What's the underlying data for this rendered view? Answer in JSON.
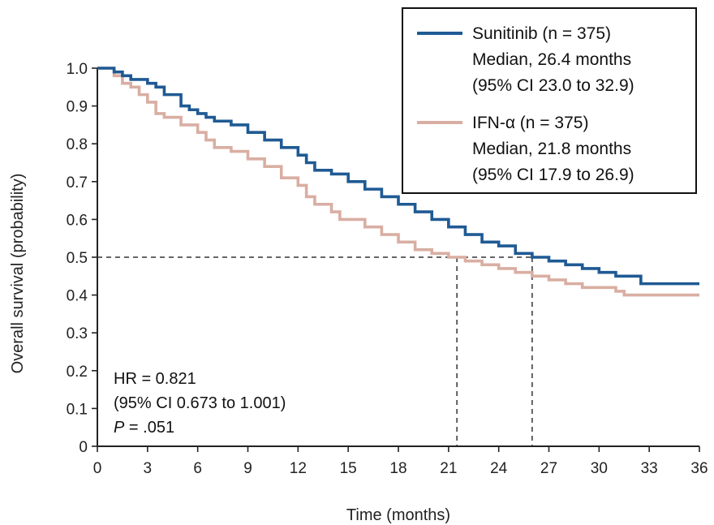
{
  "chart_data": {
    "type": "line",
    "title": "",
    "xlabel": "Time (months)",
    "ylabel": "Overall survival (probability)",
    "xlim": [
      0,
      36
    ],
    "ylim": [
      0,
      1.0
    ],
    "x_ticks": [
      0,
      3,
      6,
      9,
      12,
      15,
      18,
      21,
      24,
      27,
      30,
      33,
      36
    ],
    "y_ticks": [
      0,
      0.1,
      0.2,
      0.3,
      0.4,
      0.5,
      0.6,
      0.7,
      0.8,
      0.9,
      1.0
    ],
    "x_tick_labels": [
      "0",
      "3",
      "6",
      "9",
      "12",
      "15",
      "18",
      "21",
      "24",
      "27",
      "30",
      "33",
      "36"
    ],
    "y_tick_labels": [
      "0",
      "0.1",
      "0.2",
      "0.3",
      "0.4",
      "0.5",
      "0.6",
      "0.7",
      "0.8",
      "0.9",
      "1.0"
    ],
    "grid": false,
    "legend_position": "top-right",
    "series": [
      {
        "name": "Sunitinib (n = 375)",
        "color": "#1f5a94",
        "step": true,
        "x": [
          0,
          1,
          1.5,
          2,
          3,
          3.5,
          4,
          5,
          5.5,
          6,
          6.5,
          7,
          7.5,
          8,
          9,
          10,
          11,
          12,
          12.5,
          13,
          14,
          15,
          16,
          17,
          18,
          19,
          20,
          21,
          22,
          23,
          24,
          25,
          26,
          27,
          28,
          29,
          30,
          31,
          32.5,
          33,
          36
        ],
        "y": [
          1.0,
          0.99,
          0.98,
          0.97,
          0.96,
          0.95,
          0.93,
          0.9,
          0.89,
          0.88,
          0.87,
          0.86,
          0.86,
          0.85,
          0.83,
          0.81,
          0.79,
          0.77,
          0.75,
          0.73,
          0.72,
          0.7,
          0.68,
          0.66,
          0.64,
          0.62,
          0.6,
          0.58,
          0.56,
          0.54,
          0.53,
          0.51,
          0.5,
          0.49,
          0.48,
          0.47,
          0.46,
          0.45,
          0.43,
          0.43,
          0.43
        ]
      },
      {
        "name": "IFN-α (n = 375)",
        "color": "#d9aea2",
        "step": true,
        "x": [
          0,
          1,
          1.5,
          2,
          2.5,
          3,
          3.5,
          4,
          5,
          6,
          6.5,
          7,
          8,
          9,
          10,
          11,
          12,
          12.5,
          13,
          14,
          14.5,
          15,
          16,
          17,
          18,
          19,
          20,
          21,
          22,
          23,
          24,
          25,
          26,
          27,
          28,
          29,
          30,
          31,
          31.5,
          33,
          36
        ],
        "y": [
          1.0,
          0.98,
          0.96,
          0.95,
          0.93,
          0.91,
          0.88,
          0.87,
          0.85,
          0.83,
          0.81,
          0.79,
          0.78,
          0.76,
          0.74,
          0.71,
          0.69,
          0.66,
          0.64,
          0.62,
          0.6,
          0.6,
          0.58,
          0.56,
          0.54,
          0.52,
          0.51,
          0.5,
          0.49,
          0.48,
          0.47,
          0.46,
          0.45,
          0.44,
          0.43,
          0.42,
          0.42,
          0.41,
          0.4,
          0.4,
          0.4
        ]
      }
    ],
    "legend": [
      {
        "series_name": "Sunitinib (n = 375)",
        "lines": [
          "Sunitinib (n = 375)",
          "Median, 26.4 months",
          "(95% CI 23.0 to 32.9)"
        ]
      },
      {
        "series_name": "IFN-α (n = 375)",
        "lines": [
          "IFN-α (n = 375)",
          "Median, 21.8 months",
          "(95% CI 17.9 to 26.9)"
        ]
      }
    ],
    "median_guides": {
      "y": 0.5,
      "x_values": [
        21.5,
        26.0
      ]
    },
    "annotation": {
      "hr": "HR = 0.821",
      "ci": "(95% CI 0.673 to 1.001)",
      "p_italic": "P",
      "p_value": " = .051"
    }
  }
}
